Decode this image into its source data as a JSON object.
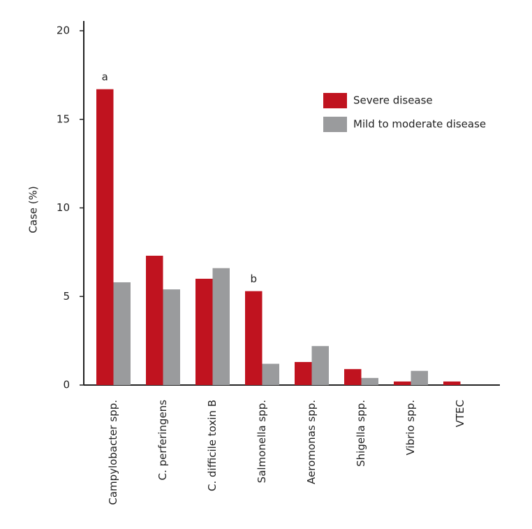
{
  "chart_data": {
    "type": "bar",
    "y_label": "Case (%)",
    "categories": [
      "Campylobacter spp.",
      "C. perferingens",
      "C. difficile toxin B",
      "Salmonella spp.",
      "Aeromonas spp.",
      "Shigella spp.",
      "Vibrio spp.",
      "VTEC"
    ],
    "series": [
      {
        "name": "Severe disease",
        "color": "#c0131f",
        "values": [
          16.7,
          7.3,
          6.0,
          5.3,
          1.3,
          0.9,
          0.2,
          0.2
        ]
      },
      {
        "name": "Mild to moderate disease",
        "color": "#9a9b9d",
        "values": [
          5.8,
          5.4,
          6.6,
          1.2,
          2.2,
          0.4,
          0.8,
          0
        ]
      }
    ],
    "annotations": [
      {
        "text": "a",
        "series": 0,
        "category": 0
      },
      {
        "text": "b",
        "series": 0,
        "category": 3
      }
    ],
    "ylim": [
      0,
      20
    ],
    "yticks": [
      0,
      5,
      10,
      15,
      20
    ],
    "legend": "upper right"
  }
}
